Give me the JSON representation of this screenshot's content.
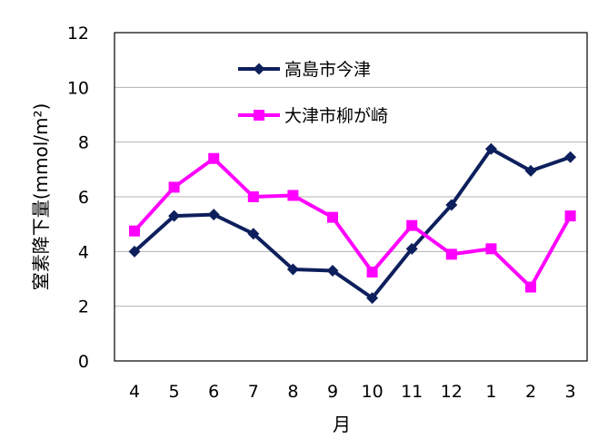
{
  "chart_data": {
    "type": "line",
    "categories": [
      "4",
      "5",
      "6",
      "7",
      "8",
      "9",
      "10",
      "11",
      "12",
      "1",
      "2",
      "3"
    ],
    "series": [
      {
        "name": "高島市今津",
        "color": "#0d1f5c",
        "marker": "diamond",
        "values": [
          4.0,
          5.3,
          5.35,
          4.65,
          3.35,
          3.3,
          2.3,
          4.1,
          5.7,
          7.75,
          6.95,
          7.45
        ]
      },
      {
        "name": "大津市柳が崎",
        "color": "#ff00ff",
        "marker": "square",
        "values": [
          4.75,
          6.35,
          7.4,
          6.0,
          6.05,
          5.25,
          3.25,
          4.95,
          3.9,
          4.1,
          2.7,
          5.3
        ]
      }
    ],
    "ylim": [
      0,
      12
    ],
    "yticks": [
      "0",
      "2",
      "4",
      "6",
      "8",
      "10",
      "12"
    ],
    "xlabel": "月",
    "ylabel": "窒素降下量(mmol/m²)",
    "legend_position": "top-center",
    "grid": "horizontal"
  }
}
